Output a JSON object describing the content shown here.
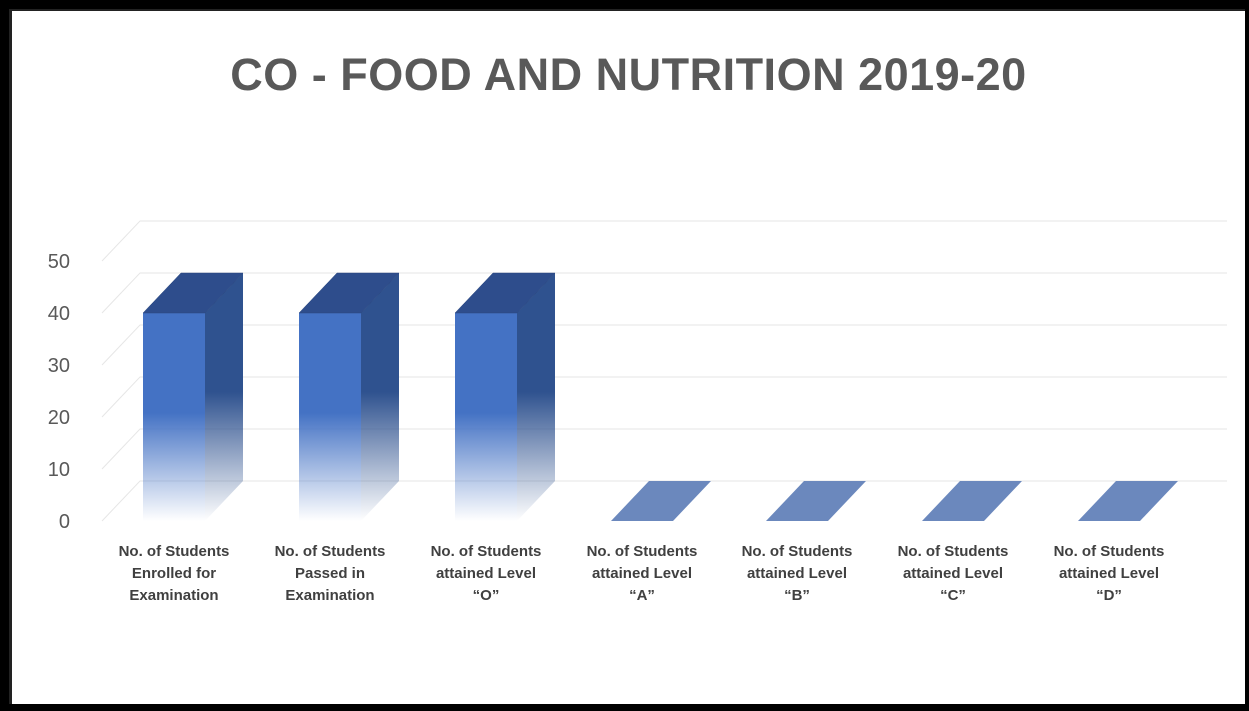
{
  "chart_data": {
    "type": "bar",
    "title": "CO - FOOD AND NUTRITION 2019-20",
    "categories": [
      [
        "No. of Students",
        "Enrolled for",
        "Examination"
      ],
      [
        "No. of Students",
        "Passed in",
        "Examination"
      ],
      [
        "No. of Students",
        "attained Level",
        "“O”"
      ],
      [
        "No. of Students",
        "attained Level",
        "“A”"
      ],
      [
        "No. of Students",
        "attained Level",
        "“B”"
      ],
      [
        "No. of Students",
        "attained Level",
        "“C”"
      ],
      [
        "No. of Students",
        "attained Level",
        "“D”"
      ]
    ],
    "values": [
      40,
      40,
      40,
      0,
      0,
      0,
      0
    ],
    "ylim": [
      0,
      50
    ],
    "yticks": [
      "0",
      "10",
      "20",
      "30",
      "40",
      "50"
    ],
    "grid": true,
    "three_d": true,
    "colors": {
      "bar_front": "#4472c4",
      "bar_side": "#2f528f",
      "bar_top": "#2e4d8c",
      "zero_bar": "#6b88bd"
    }
  }
}
